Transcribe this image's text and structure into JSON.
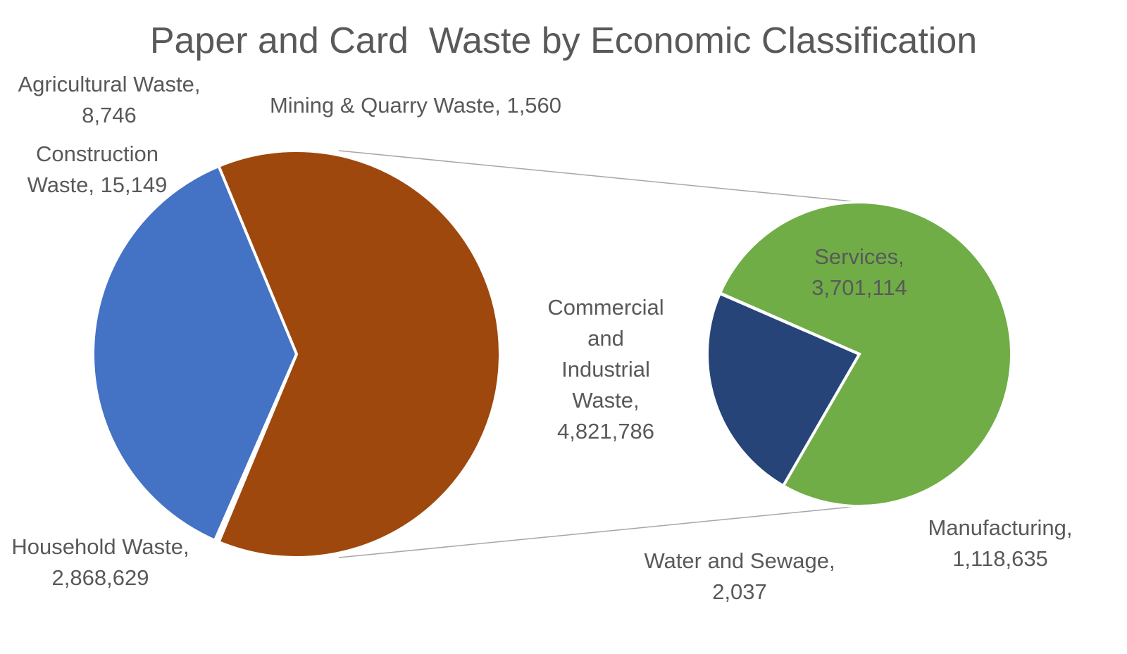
{
  "chart_data": {
    "type": "pie",
    "subtype": "pie-of-pie",
    "title": "Paper and Card  Waste by Economic Classification",
    "primary": {
      "slices": [
        {
          "name": "Agricultural Waste",
          "value": 8746,
          "color": "#FFC000",
          "label": "Agricultural Waste,\n8,746"
        },
        {
          "name": "Mining & Quarry Waste",
          "value": 1560,
          "color": "#5B9BD5",
          "label": "Mining & Quarry Waste, 1,560"
        },
        {
          "name": "Construction Waste",
          "value": 15149,
          "color": "#A5A5A5",
          "label": "Construction Waste, 15,149"
        },
        {
          "name": "Household Waste",
          "value": 2868629,
          "color": "#4472C4",
          "label": "Household Waste,\n2,868,629"
        },
        {
          "name": "Commercial and Industrial Waste",
          "value": 4821786,
          "color": "#9E480E",
          "label": "Commercial and Industrial Waste, 4,821,786"
        }
      ]
    },
    "secondary": {
      "of": "Commercial and Industrial Waste",
      "slices": [
        {
          "name": "Services",
          "value": 3701114,
          "color": "#70AD47",
          "label": "Services,\n3,701,114"
        },
        {
          "name": "Manufacturing",
          "value": 1118635,
          "color": "#264478",
          "label": "Manufacturing,\n1,118,635"
        },
        {
          "name": "Water and Sewage",
          "value": 2037,
          "color": "#ED7D31",
          "label": "Water and Sewage,\n2,037"
        }
      ]
    },
    "legend": "none",
    "data_labels": "category-and-value"
  }
}
